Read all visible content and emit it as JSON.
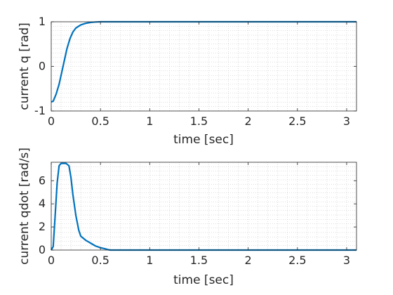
{
  "chart_data": [
    {
      "type": "line",
      "xlabel": "time [sec]",
      "ylabel": "current q [rad]",
      "xlim": [
        0,
        3.1
      ],
      "ylim": [
        -1,
        1
      ],
      "xticks": [
        0,
        0.5,
        1,
        1.5,
        2,
        2.5,
        3
      ],
      "xtick_labels": [
        "0",
        "0.5",
        "1",
        "1.5",
        "2",
        "2.5",
        "3"
      ],
      "yticks": [
        -1,
        0,
        1
      ],
      "ytick_labels": [
        "-1",
        "0",
        "1"
      ],
      "grid": "minor-dotted",
      "color": "#0072BD",
      "series": [
        {
          "x": [
            0,
            0.02,
            0.05,
            0.08,
            0.1,
            0.13,
            0.16,
            0.19,
            0.22,
            0.25,
            0.3,
            0.35,
            0.4,
            0.45,
            0.5,
            0.6,
            3.1
          ],
          "values": [
            -0.8,
            -0.78,
            -0.62,
            -0.4,
            -0.2,
            0.1,
            0.4,
            0.62,
            0.77,
            0.86,
            0.93,
            0.965,
            0.985,
            0.995,
            1.0,
            1.0,
            1.0
          ]
        }
      ]
    },
    {
      "type": "line",
      "xlabel": "time [sec]",
      "ylabel": "current qdot [rad/s]",
      "xlim": [
        0,
        3.1
      ],
      "ylim": [
        0,
        7.6
      ],
      "xticks": [
        0,
        0.5,
        1,
        1.5,
        2,
        2.5,
        3
      ],
      "xtick_labels": [
        "0",
        "0.5",
        "1",
        "1.5",
        "2",
        "2.5",
        "3"
      ],
      "yticks": [
        0,
        2,
        4,
        6
      ],
      "ytick_labels": [
        "0",
        "2",
        "4",
        "6"
      ],
      "grid": "minor-dotted",
      "color": "#0072BD",
      "series": [
        {
          "x": [
            0,
            0.02,
            0.04,
            0.06,
            0.08,
            0.1,
            0.15,
            0.18,
            0.2,
            0.22,
            0.25,
            0.28,
            0.3,
            0.35,
            0.4,
            0.45,
            0.5,
            0.55,
            0.58,
            0.6,
            1.0,
            3.1
          ],
          "values": [
            0,
            0.3,
            3.0,
            5.8,
            7.3,
            7.5,
            7.5,
            7.3,
            6.3,
            4.8,
            3.0,
            1.7,
            1.2,
            0.85,
            0.6,
            0.35,
            0.2,
            0.1,
            0.03,
            0,
            0,
            0
          ]
        }
      ]
    }
  ]
}
